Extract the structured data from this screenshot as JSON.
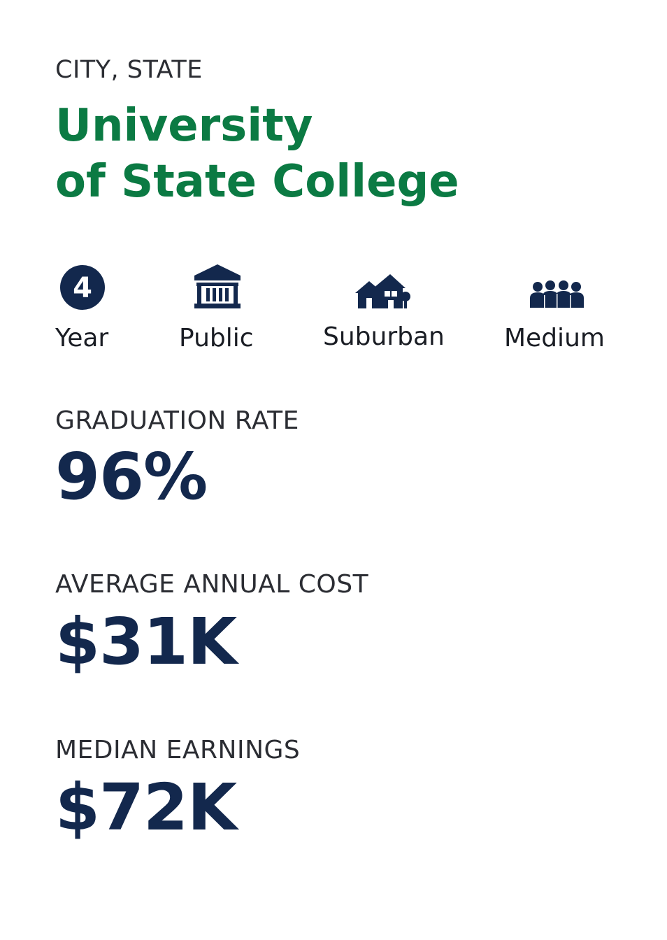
{
  "header": {
    "location": "CITY, STATE",
    "title_line1": "University",
    "title_line2": "of State College"
  },
  "attributes": [
    {
      "icon": "four-year-icon",
      "icon_text": "4",
      "label": "Year"
    },
    {
      "icon": "public-building-icon",
      "label": "Public"
    },
    {
      "icon": "suburban-houses-icon",
      "label": "Suburban"
    },
    {
      "icon": "people-group-icon",
      "label": "Medium"
    }
  ],
  "stats": {
    "graduation_rate": {
      "label": "GRADUATION RATE",
      "value": "96%"
    },
    "average_annual_cost": {
      "label": "AVERAGE ANNUAL COST",
      "value": "$31K"
    },
    "median_earnings": {
      "label": "MEDIAN EARNINGS",
      "value": "$72K"
    }
  },
  "colors": {
    "title": "#0b7a43",
    "icon_and_value": "#13284d",
    "text": "#1a1d24"
  }
}
